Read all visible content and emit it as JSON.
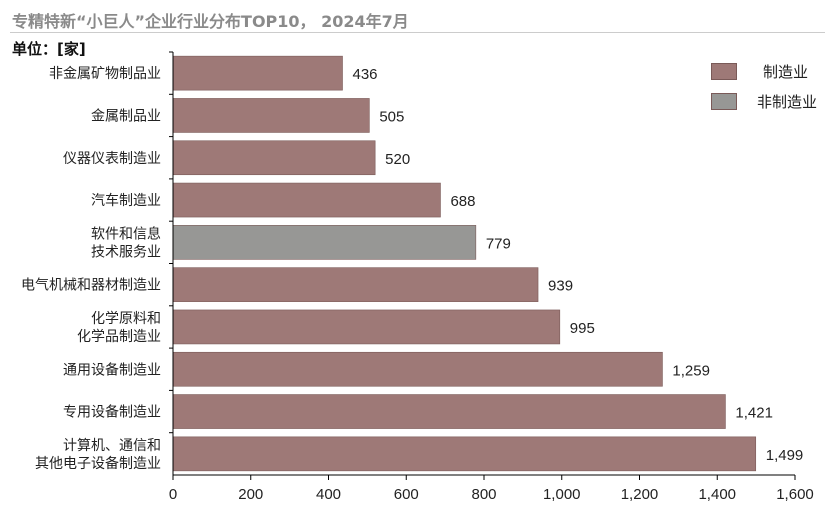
{
  "title": "专精特新“小巨人”企业行业分布TOP10， 2024年7月",
  "unit_label": "单位：[家]",
  "colors": {
    "manufacturing": "#9e7977",
    "non_manufacturing": "#979795",
    "border": "#7a5a58"
  },
  "chart_data": {
    "type": "bar",
    "orientation": "horizontal",
    "categories": [
      [
        "非金属矿物制品业"
      ],
      [
        "金属制品业"
      ],
      [
        "仪器仪表制造业"
      ],
      [
        "汽车制造业"
      ],
      [
        "软件和信息",
        "技术服务业"
      ],
      [
        "电气机械和器材制造业"
      ],
      [
        "化学原料和",
        "化学品制造业"
      ],
      [
        "通用设备制造业"
      ],
      [
        "专用设备制造业"
      ],
      [
        "计算机、通信和",
        "其他电子设备制造业"
      ]
    ],
    "values": [
      436,
      505,
      520,
      688,
      779,
      939,
      995,
      1259,
      1421,
      1499
    ],
    "value_labels": [
      "436",
      "505",
      "520",
      "688",
      "779",
      "939",
      "995",
      "1,259",
      "1,421",
      "1,499"
    ],
    "group": [
      "manufacturing",
      "manufacturing",
      "manufacturing",
      "manufacturing",
      "non_manufacturing",
      "manufacturing",
      "manufacturing",
      "manufacturing",
      "manufacturing",
      "manufacturing"
    ],
    "xlim": [
      0,
      1600
    ],
    "xticks": [
      0,
      200,
      400,
      600,
      800,
      1000,
      1200,
      1400,
      1600
    ],
    "xtick_labels": [
      "0",
      "200",
      "400",
      "600",
      "800",
      "1,000",
      "1,200",
      "1,400",
      "1,600"
    ],
    "grid": false,
    "legend": {
      "position": "top-right",
      "entries": [
        {
          "key": "manufacturing",
          "label": "制造业"
        },
        {
          "key": "non_manufacturing",
          "label": "非制造业"
        }
      ]
    }
  }
}
